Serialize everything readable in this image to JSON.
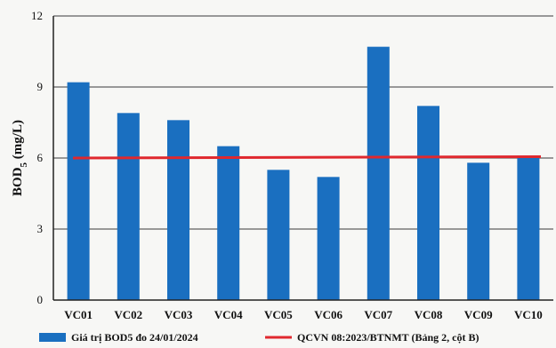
{
  "chart_data": {
    "type": "bar",
    "categories": [
      "VC01",
      "VC02",
      "VC03",
      "VC04",
      "VC05",
      "VC06",
      "VC07",
      "VC08",
      "VC09",
      "VC10"
    ],
    "series": [
      {
        "name": "Giá trị BOD5 đo 24/01/2024",
        "values": [
          9.2,
          7.9,
          7.6,
          6.5,
          5.5,
          5.2,
          10.7,
          8.2,
          5.8,
          6.1
        ],
        "color": "#1a6fc0"
      }
    ],
    "reference_line": {
      "name": "QCVN 08:2023/BTNMT (Bảng 2, cột B)",
      "value": 6,
      "color": "#e0282e"
    },
    "ylabel": "BOD5 (mg/L)",
    "ylim": [
      0,
      12
    ],
    "yticks": [
      "0",
      "3",
      "6",
      "9",
      "12"
    ],
    "grid": true,
    "legend_position": "bottom"
  }
}
